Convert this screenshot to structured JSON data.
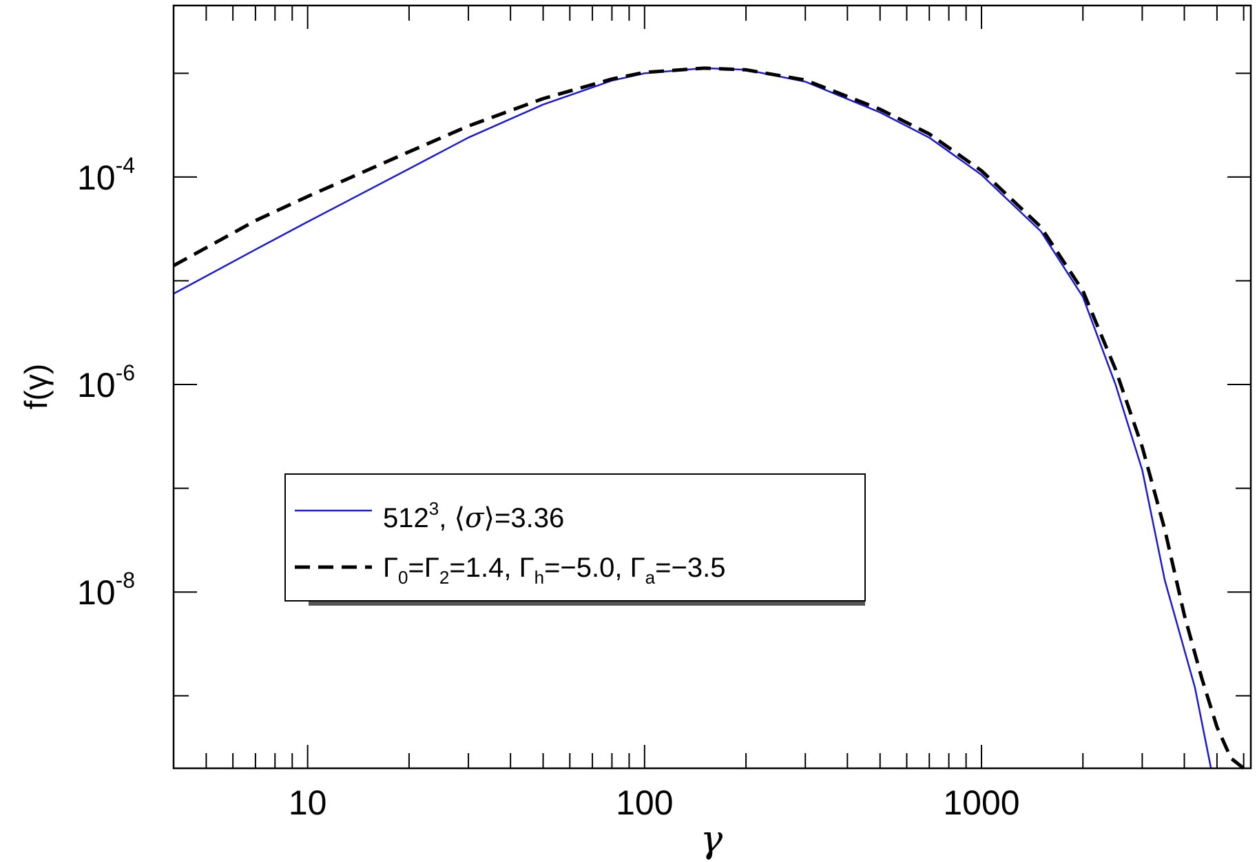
{
  "chart_data": {
    "type": "line",
    "title": "",
    "xlabel": "γ",
    "ylabel": "f(γ)",
    "xscale": "log",
    "yscale": "log",
    "xlim": [
      4,
      6300
    ],
    "ylim": [
      2e-10,
      0.0045
    ],
    "xticks": [
      {
        "value": 10,
        "label": "10"
      },
      {
        "value": 100,
        "label": "100"
      },
      {
        "value": 1000,
        "label": "1000"
      }
    ],
    "yticks": [
      {
        "value": 0.0001,
        "base": "10",
        "exp": "-4"
      },
      {
        "value": 1e-06,
        "base": "10",
        "exp": "-6"
      },
      {
        "value": 1e-08,
        "base": "10",
        "exp": "-8"
      }
    ],
    "grid": false,
    "legend_position": "center-left",
    "series": [
      {
        "name": "512^3, ⟨σ⟩=3.36",
        "color": "#1a1ad6",
        "style": "solid",
        "x": [
          4,
          7,
          10,
          20,
          30,
          50,
          80,
          100,
          150,
          200,
          300,
          500,
          700,
          1000,
          1500,
          2000,
          2500,
          3000,
          3500,
          4300,
          4800
        ],
        "y": [
          7.5e-06,
          2e-05,
          3.7e-05,
          0.00012,
          0.00024,
          0.0005,
          0.00085,
          0.001,
          0.00112,
          0.00108,
          0.00083,
          0.00042,
          0.00024,
          0.000105,
          3e-05,
          7e-06,
          1e-06,
          1.5e-07,
          1.3e-08,
          1.2e-09,
          2e-10
        ]
      },
      {
        "name": "Γ0=Γ2=1.4, Γh=−5.0, Γa=−3.5",
        "color": "#000000",
        "style": "dashed",
        "x": [
          4,
          7,
          10,
          20,
          30,
          50,
          80,
          100,
          150,
          200,
          300,
          500,
          700,
          1000,
          1500,
          2000,
          2500,
          3000,
          3500,
          4000,
          4500,
          5000,
          5500,
          6000
        ],
        "y": [
          1.4e-05,
          3.8e-05,
          6.5e-05,
          0.000175,
          0.00031,
          0.00057,
          0.00088,
          0.00102,
          0.00112,
          0.00108,
          0.00086,
          0.00045,
          0.00026,
          0.000115,
          3.3e-05,
          8e-06,
          1.4e-06,
          2.5e-07,
          4e-08,
          6e-09,
          1.5e-09,
          5e-10,
          2.5e-10,
          2e-10
        ]
      }
    ],
    "legend": {
      "entry1": {
        "prefix": "512",
        "sup": "3",
        "mid": ", ⟨",
        "sigma": "σ",
        "suffix": "⟩=3.36"
      },
      "entry2": {
        "g0": "Γ",
        "s0": "0",
        "eq1": "=",
        "g2": "Γ",
        "s2": "2",
        "v1": "=1.4, ",
        "gh": "Γ",
        "sh": "h",
        "v2": "=−5.0, ",
        "ga": "Γ",
        "sa": "a",
        "v3": "=−3.5"
      }
    }
  }
}
